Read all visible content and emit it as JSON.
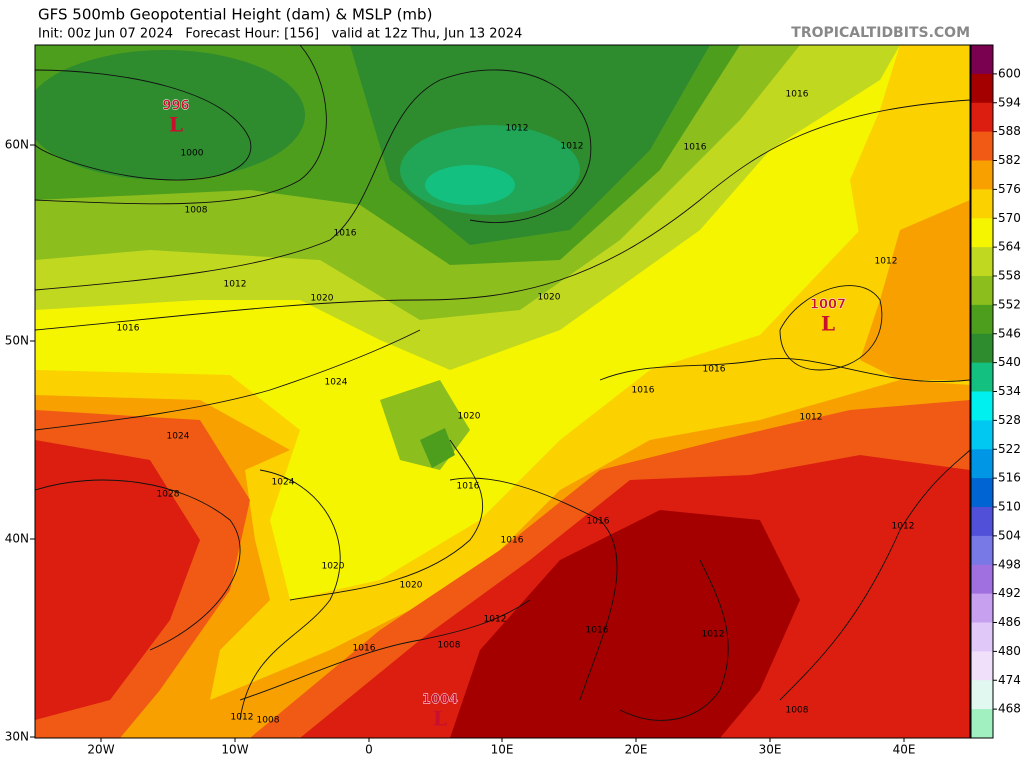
{
  "header": {
    "title": "GFS 500mb Geopotential Height (dam) & MSLP (mb)",
    "subtitle": "Init: 00z Jun 07 2024   Forecast Hour: [156]   valid at 12z Thu, Jun 13 2024",
    "watermark": "TROPICALTIDBITS.COM"
  },
  "colorbar": {
    "labels": [
      "600",
      "594",
      "588",
      "582",
      "576",
      "570",
      "564",
      "558",
      "552",
      "546",
      "540",
      "534",
      "528",
      "522",
      "516",
      "510",
      "504",
      "498",
      "492",
      "486",
      "480",
      "474",
      "468"
    ],
    "colors": [
      "#7a0050",
      "#a50000",
      "#dc1e10",
      "#f05a14",
      "#f7a000",
      "#fbd100",
      "#f5f500",
      "#c0d820",
      "#8cbe1e",
      "#4e9e1e",
      "#2e8b2e",
      "#14c080",
      "#00f0f0",
      "#00c8f0",
      "#0096e6",
      "#0064d2",
      "#5050d8",
      "#7878e6",
      "#a070e0",
      "#c8a0f0",
      "#e0c8f8",
      "#f0e0fa",
      "#e0f8f0",
      "#a0f0c0"
    ]
  },
  "axes": {
    "lat_labels": [
      "60N",
      "50N",
      "40N",
      "30N"
    ],
    "lon_labels": [
      "20W",
      "10W",
      "0",
      "10E",
      "20E",
      "30E",
      "40E"
    ]
  },
  "isobar_labels": [
    "1000",
    "1008",
    "1012",
    "1016",
    "1016",
    "1020",
    "1024",
    "1024",
    "1028",
    "1024",
    "1020",
    "1020",
    "1016",
    "1012",
    "1008",
    "1008",
    "1012",
    "1016",
    "1016",
    "1020",
    "1020",
    "1012",
    "1012",
    "1016",
    "1016",
    "1012",
    "1016",
    "1016",
    "1012",
    "1012",
    "1016",
    "1016",
    "1012",
    "1008"
  ],
  "pressure_centers": [
    {
      "value": "996",
      "kind": "L"
    },
    {
      "value": "1007",
      "kind": "L"
    },
    {
      "value": "1004",
      "kind": "L"
    }
  ]
}
